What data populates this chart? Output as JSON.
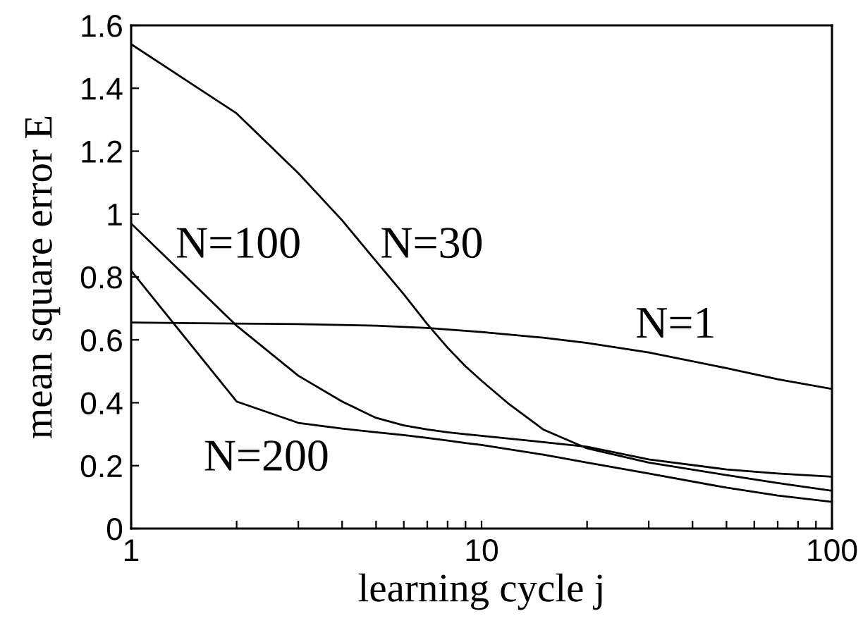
{
  "chart_data": {
    "type": "line",
    "xlabel": "learning cycle j",
    "ylabel": "mean square error E",
    "log": "x",
    "line_style": "solid",
    "xlim": [
      1,
      100
    ],
    "ylim": [
      0,
      1.6
    ],
    "xticks": [
      1,
      {
        "value": 2,
        "label": null
      },
      {
        "value": 3,
        "label": null
      },
      {
        "value": 4,
        "label": null
      },
      {
        "value": 5,
        "label": null
      },
      {
        "value": 6,
        "label": null
      },
      {
        "value": 7,
        "label": null
      },
      {
        "value": 8,
        "label": null
      },
      {
        "value": 9,
        "label": null
      },
      10,
      {
        "value": 20,
        "label": null
      },
      {
        "value": 30,
        "label": null
      },
      {
        "value": 40,
        "label": null
      },
      {
        "value": 50,
        "label": null
      },
      {
        "value": 60,
        "label": null
      },
      {
        "value": 70,
        "label": null
      },
      {
        "value": 80,
        "label": null
      },
      {
        "value": 90,
        "label": null
      },
      100
    ],
    "yticks": [
      0,
      0.2,
      0.4,
      0.6,
      0.8,
      1,
      1.2,
      1.4,
      1.6
    ],
    "series": [
      {
        "name": "N=1",
        "color": "#000000",
        "x": [
          1,
          2,
          3,
          5,
          7,
          10,
          15,
          20,
          30,
          50,
          70,
          100
        ],
        "values": [
          0.655,
          0.652,
          0.65,
          0.645,
          0.638,
          0.625,
          0.607,
          0.59,
          0.56,
          0.51,
          0.475,
          0.444
        ]
      },
      {
        "name": "N=30",
        "color": "#000000",
        "x": [
          1,
          2,
          3,
          4,
          5,
          6,
          7,
          8,
          9,
          10,
          12,
          15,
          20,
          30,
          50,
          70,
          100
        ],
        "values": [
          1.54,
          1.32,
          1.13,
          0.98,
          0.85,
          0.745,
          0.65,
          0.575,
          0.516,
          0.47,
          0.395,
          0.315,
          0.255,
          0.21,
          0.17,
          0.145,
          0.12
        ]
      },
      {
        "name": "N=100",
        "color": "#000000",
        "x": [
          1,
          2,
          3,
          4,
          5,
          6,
          7,
          8,
          9,
          10,
          15,
          20,
          30,
          50,
          70,
          100
        ],
        "values": [
          0.97,
          0.645,
          0.486,
          0.404,
          0.352,
          0.328,
          0.315,
          0.306,
          0.3,
          0.295,
          0.275,
          0.26,
          0.22,
          0.188,
          0.175,
          0.165
        ]
      },
      {
        "name": "N=200",
        "color": "#000000",
        "x": [
          1,
          2,
          3,
          4,
          5,
          6,
          7,
          8,
          9,
          10,
          15,
          20,
          30,
          50,
          70,
          100
        ],
        "values": [
          0.82,
          0.404,
          0.336,
          0.318,
          0.306,
          0.297,
          0.288,
          0.28,
          0.272,
          0.266,
          0.235,
          0.21,
          0.175,
          0.13,
          0.105,
          0.085
        ]
      }
    ]
  }
}
